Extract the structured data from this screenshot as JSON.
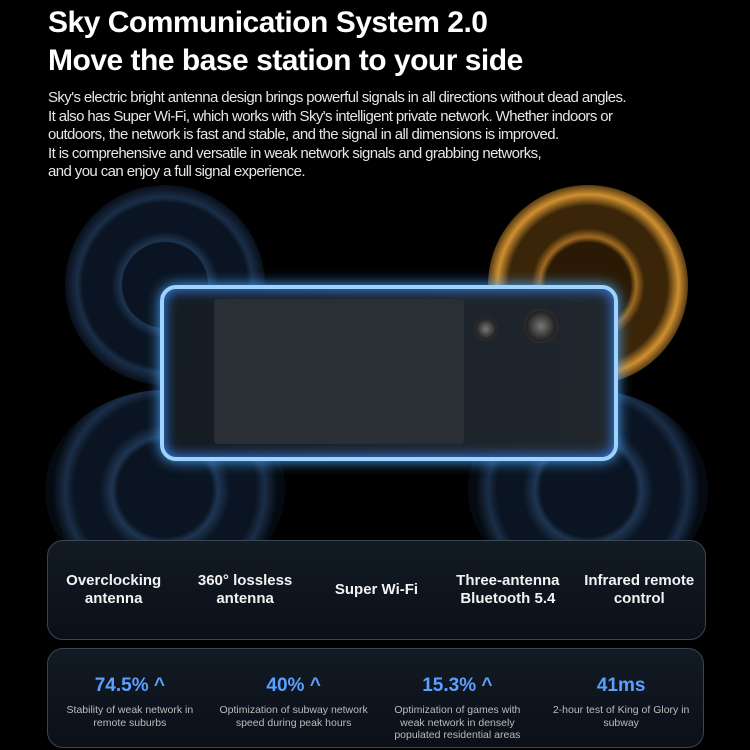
{
  "header": {
    "title_line1": "Sky Communication System 2.0",
    "title_line2": "Move the base station to your side"
  },
  "description": [
    "Sky's electric bright antenna design brings powerful signals in all directions without dead angles.",
    "It also has Super Wi-Fi, which works with Sky's intelligent private network. Whether indoors or",
    "outdoors, the network is fast and stable, and the signal in all dimensions is improved.",
    "It is comprehensive and versatile in weak network signals and grabbing networks,",
    "and you can enjoy a full signal experience."
  ],
  "features": [
    {
      "l1": "Overclocking",
      "l2": "antenna"
    },
    {
      "l1": "360° lossless",
      "l2": "antenna"
    },
    {
      "l1": "Super Wi-Fi",
      "l2": ""
    },
    {
      "l1": "Three-antenna",
      "l2": "Bluetooth 5.4"
    },
    {
      "l1": "Infrared remote",
      "l2": "control"
    }
  ],
  "stats": [
    {
      "value": "74.5%",
      "arrow": "^",
      "desc": "Stability of weak network in remote suburbs"
    },
    {
      "value": "40%",
      "arrow": "^",
      "desc": "Optimization of subway network speed during peak hours"
    },
    {
      "value": "15.3%",
      "arrow": "^",
      "desc": "Optimization of games with weak network in densely populated residential areas"
    },
    {
      "value": "41ms",
      "arrow": "",
      "desc": "2-hour test of King of Glory in subway"
    }
  ],
  "colors": {
    "accent_blue": "#5aa0ff",
    "glow_gold": "#e0a040",
    "glow_blue": "#4aa8ff"
  }
}
